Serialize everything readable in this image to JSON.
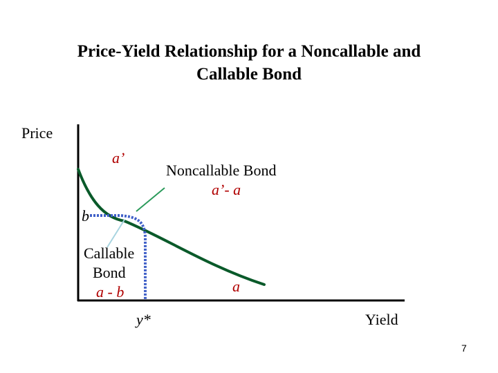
{
  "slide": {
    "title_line1": "Price-Yield Relationship for a Noncallable and",
    "title_line2": "Callable Bond",
    "page_number": "7"
  },
  "diagram": {
    "y_axis_label": "Price",
    "x_axis_label": "Yield",
    "point_a_prime": "a’",
    "point_a": "a",
    "point_b": "b",
    "point_ystar": "y*",
    "noncallable_label": "Noncallable Bond",
    "noncallable_range": "a’- a",
    "callable_label_line1": "Callable",
    "callable_label_line2": "Bond",
    "callable_range": "a - b",
    "colors": {
      "curve": "#0a5a2a",
      "callable_dotted": "#4060c8",
      "noncallable_pointer": "#2a9a5a",
      "callable_pointer": "#a8d4e0",
      "axis": "#000000"
    }
  }
}
